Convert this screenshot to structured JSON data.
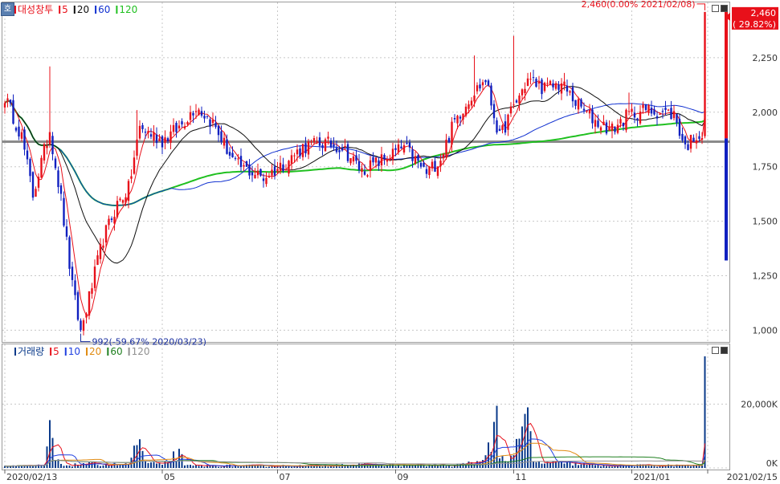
{
  "app": {
    "corner_label": "호"
  },
  "colors": {
    "up": "#e8101a",
    "down": "#1020c0",
    "ma5": "#e8101a",
    "ma20": "#101010",
    "ma60": "#1030d0",
    "ma120": "#20c020",
    "vol_ma10": "#2040e0",
    "vol_ma20": "#e08a10",
    "vol_ma60": "#208020",
    "vol_ma120": "#909090",
    "volume_bar": "#0a3a8a",
    "hline": "#8a8a8a"
  },
  "price_panel": {
    "legend": [
      {
        "text": "대성창투",
        "color": "#e8101a"
      },
      {
        "text": "5",
        "color": "#e8101a"
      },
      {
        "text": "20",
        "color": "#101010"
      },
      {
        "text": "60",
        "color": "#1030d0"
      },
      {
        "text": "120",
        "color": "#20c020"
      }
    ],
    "y_ticks": [
      "2,250",
      "2,000",
      "1,750",
      "1,500",
      "1,250",
      "1,000"
    ],
    "y_tick_values": [
      2250,
      2000,
      1750,
      1500,
      1250,
      1000
    ],
    "high_annotation": "2,460(0.00% 2021/02/08)",
    "low_annotation": "992(-59.67% 2020/03/23)",
    "price_badge": "2,460",
    "change_badge": "( 29.82%)",
    "reference_line": 1865
  },
  "volume_panel": {
    "legend": [
      {
        "text": "거래량",
        "color": "#0a3a8a"
      },
      {
        "text": "5",
        "color": "#e8101a"
      },
      {
        "text": "10",
        "color": "#2040e0"
      },
      {
        "text": "20",
        "color": "#e08a10"
      },
      {
        "text": "60",
        "color": "#208020"
      },
      {
        "text": "120",
        "color": "#909090"
      }
    ],
    "y_ticks": [
      "20,000K",
      "0K"
    ],
    "y_tick_values": [
      20000,
      0
    ]
  },
  "x_axis": {
    "labels": [
      "2020/02/13",
      "05",
      "07",
      "09",
      "11",
      "2021/01",
      "2021/02/15"
    ],
    "label_indices": [
      0,
      56,
      97,
      139,
      181,
      223,
      250
    ]
  },
  "chart_data": {
    "type": "candlestick",
    "title": "대성창투",
    "ylim": [
      950,
      2500
    ],
    "volume_ylim": [
      0,
      38000
    ],
    "series_names": [
      "5",
      "20",
      "60",
      "120"
    ],
    "close_keyframes": [
      [
        0,
        2070
      ],
      [
        6,
        1890
      ],
      [
        10,
        1620
      ],
      [
        16,
        1920
      ],
      [
        20,
        1600
      ],
      [
        24,
        1200
      ],
      [
        27,
        992
      ],
      [
        30,
        1150
      ],
      [
        35,
        1420
      ],
      [
        40,
        1580
      ],
      [
        44,
        1650
      ],
      [
        48,
        1930
      ],
      [
        56,
        1870
      ],
      [
        62,
        1930
      ],
      [
        68,
        2030
      ],
      [
        74,
        1950
      ],
      [
        82,
        1760
      ],
      [
        92,
        1700
      ],
      [
        100,
        1770
      ],
      [
        106,
        1840
      ],
      [
        113,
        1860
      ],
      [
        120,
        1840
      ],
      [
        127,
        1730
      ],
      [
        134,
        1780
      ],
      [
        142,
        1840
      ],
      [
        150,
        1720
      ],
      [
        155,
        1790
      ],
      [
        160,
        1960
      ],
      [
        166,
        2080
      ],
      [
        171,
        2150
      ],
      [
        176,
        1880
      ],
      [
        180,
        2000
      ],
      [
        186,
        2150
      ],
      [
        192,
        2110
      ],
      [
        198,
        2130
      ],
      [
        204,
        2030
      ],
      [
        210,
        1960
      ],
      [
        216,
        1920
      ],
      [
        222,
        1990
      ],
      [
        228,
        2010
      ],
      [
        234,
        2000
      ],
      [
        238,
        1990
      ],
      [
        242,
        1840
      ],
      [
        246,
        1900
      ],
      [
        248,
        1890
      ],
      [
        249,
        2460
      ]
    ],
    "spike_highs": [
      [
        16,
        2210
      ],
      [
        47,
        2010
      ],
      [
        167,
        2260
      ],
      [
        181,
        2350
      ],
      [
        186,
        2180
      ],
      [
        199,
        2180
      ],
      [
        222,
        2090
      ]
    ],
    "volume_keyframes": [
      [
        0,
        600
      ],
      [
        14,
        900
      ],
      [
        16,
        15000
      ],
      [
        18,
        2500
      ],
      [
        22,
        800
      ],
      [
        28,
        1500
      ],
      [
        44,
        1200
      ],
      [
        46,
        7000
      ],
      [
        48,
        9000
      ],
      [
        50,
        2000
      ],
      [
        56,
        1000
      ],
      [
        62,
        6000
      ],
      [
        64,
        800
      ],
      [
        110,
        800
      ],
      [
        120,
        1200
      ],
      [
        160,
        900
      ],
      [
        170,
        2500
      ],
      [
        172,
        8000
      ],
      [
        175,
        19500
      ],
      [
        176,
        3000
      ],
      [
        181,
        4000
      ],
      [
        186,
        19000
      ],
      [
        188,
        2000
      ],
      [
        200,
        1800
      ],
      [
        210,
        900
      ],
      [
        240,
        900
      ],
      [
        248,
        800
      ],
      [
        249,
        35000
      ]
    ]
  }
}
